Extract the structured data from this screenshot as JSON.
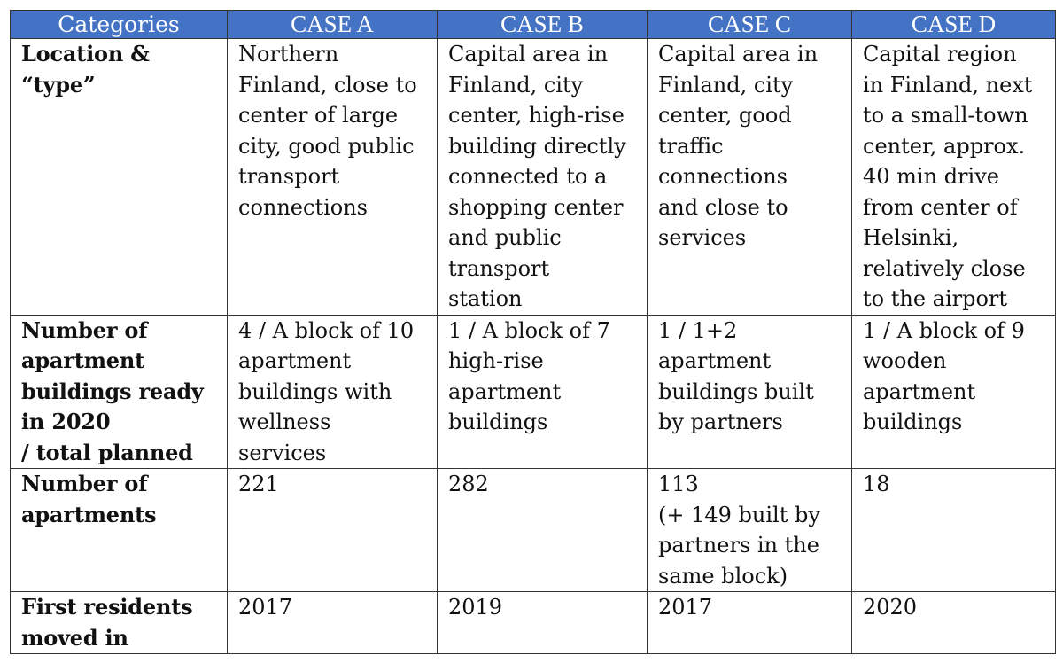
{
  "table": {
    "headers": [
      "Categories",
      "CASE A",
      "CASE B",
      "CASE C",
      "CASE D"
    ],
    "rows": [
      {
        "category": [
          "Location &",
          "“type”"
        ],
        "cells": [
          [
            "Northern",
            "Finland, close to",
            "center of large",
            "city, good public",
            "transport",
            "connections"
          ],
          [
            "Capital area in",
            "Finland, city",
            "center, high-rise",
            "building directly",
            "connected to a",
            "shopping center",
            "and public",
            "transport",
            "station"
          ],
          [
            "Capital area in",
            "Finland, city",
            "center, good",
            "traffic",
            "connections",
            "and close to",
            "services"
          ],
          [
            "Capital region",
            "in Finland, next",
            "to a small-town",
            "center, approx.",
            "40 min drive",
            "from center of",
            "Helsinki,",
            "relatively close",
            "to the airport"
          ]
        ]
      },
      {
        "category": [
          "Number of",
          "apartment",
          "buildings ready",
          "in 2020",
          "/ total planned"
        ],
        "cells": [
          [
            "4 / A block of 10",
            "apartment",
            "buildings with",
            "wellness",
            "services"
          ],
          [
            "1 / A block of 7",
            "high-rise",
            "apartment",
            "buildings"
          ],
          [
            "1 / 1+2",
            "apartment",
            "buildings built",
            "by partners"
          ],
          [
            "1 / A block of 9",
            "wooden",
            "apartment",
            "buildings"
          ]
        ]
      },
      {
        "category": [
          "Number of",
          "apartments"
        ],
        "cells": [
          [
            "221"
          ],
          [
            "282"
          ],
          [
            "113",
            "(+ 149 built by",
            "partners in the",
            "same block)"
          ],
          [
            "18"
          ]
        ]
      },
      {
        "category": [
          "First residents",
          "moved in"
        ],
        "cells": [
          [
            "2017"
          ],
          [
            "2019"
          ],
          [
            "2017"
          ],
          [
            "2020"
          ]
        ]
      }
    ]
  }
}
